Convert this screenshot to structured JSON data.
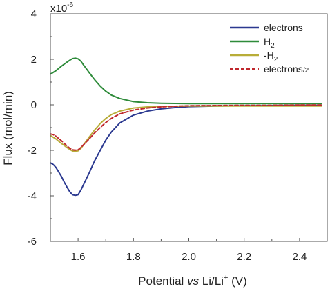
{
  "chart_data": {
    "type": "line",
    "xlabel": {
      "main": "Potential ",
      "italic": "vs",
      "rest": " Li/Li",
      "sup": "+",
      "end": " (V)"
    },
    "ylabel": "Flux (mol/min)",
    "y_multiplier": {
      "base": "x10",
      "exp": "-6"
    },
    "xlim": [
      1.5,
      2.5
    ],
    "ylim": [
      -6,
      4
    ],
    "x_ticks": [
      1.6,
      1.8,
      2.0,
      2.2,
      2.4
    ],
    "x_tick_labels": [
      "1.6",
      "1.8",
      "2.0",
      "2.2",
      "2.4"
    ],
    "y_ticks": [
      -6,
      -4,
      -2,
      0,
      2,
      4
    ],
    "y_tick_labels": [
      "-6",
      "-4",
      "-2",
      "0",
      "2",
      "4"
    ],
    "grid": false,
    "legend_position": "top-right",
    "series": [
      {
        "name": "electrons",
        "legend": {
          "main": "electrons",
          "sub": ""
        },
        "color": "#2b3990",
        "dash": false,
        "x": [
          1.5,
          1.51,
          1.52,
          1.53,
          1.54,
          1.55,
          1.56,
          1.57,
          1.58,
          1.59,
          1.6,
          1.61,
          1.62,
          1.64,
          1.66,
          1.68,
          1.7,
          1.72,
          1.75,
          1.8,
          1.85,
          1.9,
          1.95,
          2.0,
          2.1,
          2.2,
          2.3,
          2.4,
          2.48
        ],
        "y": [
          -2.55,
          -2.62,
          -2.75,
          -2.95,
          -3.15,
          -3.4,
          -3.62,
          -3.82,
          -3.95,
          -3.98,
          -3.95,
          -3.75,
          -3.5,
          -3.0,
          -2.45,
          -2.0,
          -1.55,
          -1.2,
          -0.8,
          -0.45,
          -0.28,
          -0.18,
          -0.12,
          -0.08,
          -0.05,
          -0.04,
          -0.03,
          -0.02,
          -0.02
        ]
      },
      {
        "name": "H2",
        "legend": {
          "main": "H",
          "sub": "2"
        },
        "color": "#2e8b3a",
        "dash": false,
        "x": [
          1.5,
          1.52,
          1.54,
          1.56,
          1.57,
          1.58,
          1.59,
          1.6,
          1.61,
          1.62,
          1.64,
          1.66,
          1.68,
          1.7,
          1.72,
          1.75,
          1.8,
          1.85,
          1.9,
          1.95,
          2.0,
          2.1,
          2.2,
          2.3,
          2.4,
          2.48
        ],
        "y": [
          1.35,
          1.5,
          1.7,
          1.88,
          1.96,
          2.03,
          2.05,
          2.02,
          1.92,
          1.75,
          1.42,
          1.1,
          0.82,
          0.6,
          0.43,
          0.28,
          0.14,
          0.09,
          0.07,
          0.06,
          0.05,
          0.05,
          0.05,
          0.05,
          0.05,
          0.05
        ]
      },
      {
        "name": "-H2",
        "legend": {
          "main": "-H",
          "sub": "2"
        },
        "color": "#b8ad38",
        "dash": false,
        "x": [
          1.5,
          1.52,
          1.54,
          1.56,
          1.57,
          1.58,
          1.59,
          1.6,
          1.61,
          1.62,
          1.64,
          1.66,
          1.68,
          1.7,
          1.72,
          1.75,
          1.8,
          1.85,
          1.9,
          1.95,
          2.0,
          2.1,
          2.2,
          2.3,
          2.4,
          2.48
        ],
        "y": [
          -1.35,
          -1.5,
          -1.7,
          -1.88,
          -1.96,
          -2.03,
          -2.05,
          -2.02,
          -1.92,
          -1.75,
          -1.42,
          -1.1,
          -0.82,
          -0.6,
          -0.43,
          -0.28,
          -0.14,
          -0.09,
          -0.07,
          -0.06,
          -0.05,
          -0.05,
          -0.05,
          -0.05,
          -0.05,
          -0.05
        ]
      },
      {
        "name": "electrons/2",
        "legend": {
          "main": "electrons",
          "sub": "/2"
        },
        "color": "#c0282d",
        "dash": true,
        "x": [
          1.5,
          1.51,
          1.52,
          1.53,
          1.54,
          1.55,
          1.56,
          1.57,
          1.58,
          1.59,
          1.6,
          1.61,
          1.62,
          1.64,
          1.66,
          1.68,
          1.7,
          1.72,
          1.75,
          1.8,
          1.85,
          1.9,
          1.95,
          2.0,
          2.1,
          2.2,
          2.3,
          2.4,
          2.48
        ],
        "y": [
          -1.28,
          -1.31,
          -1.38,
          -1.48,
          -1.58,
          -1.7,
          -1.81,
          -1.91,
          -1.98,
          -1.99,
          -1.98,
          -1.88,
          -1.75,
          -1.5,
          -1.23,
          -1.0,
          -0.78,
          -0.6,
          -0.4,
          -0.23,
          -0.14,
          -0.09,
          -0.06,
          -0.04,
          -0.03,
          -0.02,
          -0.02,
          -0.01,
          -0.01
        ]
      }
    ]
  }
}
